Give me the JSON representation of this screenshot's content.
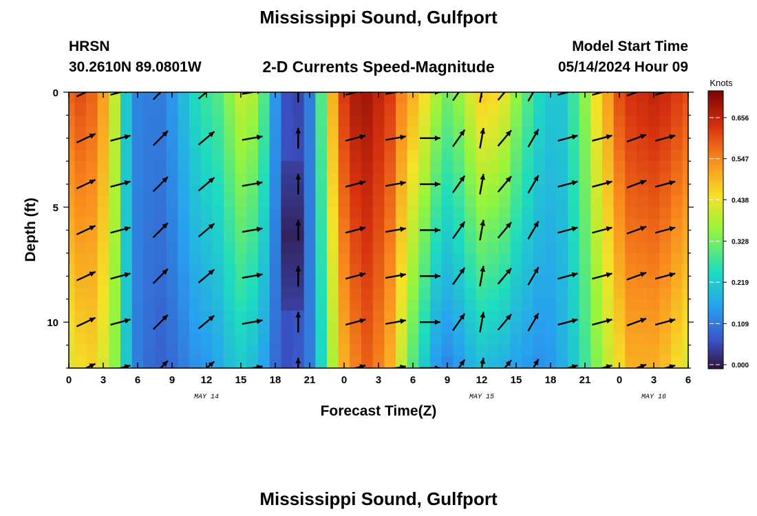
{
  "header": {
    "title": "Mississippi Sound, Gulfport",
    "station": "HRSN",
    "coords": "30.2610N  89.0801W",
    "subtitle": "2-D Currents Speed-Magnitude",
    "model_label": "Model Start Time",
    "model_time": "05/14/2024 Hour 09"
  },
  "footer": {
    "title": "Mississippi Sound, Gulfport"
  },
  "chart_data": {
    "type": "heatmap",
    "title": "2-D Currents Speed-Magnitude",
    "xlabel": "Forecast Time(Z)",
    "ylabel": "Depth (ft)",
    "x_ticks": [
      "0",
      "3",
      "6",
      "9",
      "12",
      "15",
      "18",
      "21",
      "0",
      "3",
      "6",
      "9",
      "12",
      "15",
      "18",
      "21",
      "0",
      "3",
      "6"
    ],
    "date_labels": [
      {
        "label": "MAY 14",
        "hour": 12
      },
      {
        "label": "MAY 15",
        "hour": 36
      },
      {
        "label": "MAY 16",
        "hour": 51
      }
    ],
    "xlim": [
      0,
      54
    ],
    "ylim": [
      0,
      12
    ],
    "y_ticks": [
      0,
      5,
      10
    ],
    "y_inverted": true,
    "colorbar": {
      "unit": "Knots",
      "min": 0.0,
      "max": 0.72,
      "ticks": [
        "0.000",
        "0.109",
        "0.219",
        "0.328",
        "0.438",
        "0.547",
        "0.656"
      ],
      "tick_values": [
        0.0,
        0.109,
        0.219,
        0.328,
        0.438,
        0.547,
        0.656
      ]
    },
    "speed_profile": {
      "hours": [
        0,
        1,
        2,
        3,
        4,
        5,
        6,
        7,
        8,
        9,
        10,
        11,
        12,
        13,
        14,
        15,
        16,
        17,
        18,
        19,
        20,
        21,
        22,
        23,
        24,
        25,
        26,
        27,
        28,
        29,
        30,
        31,
        32,
        33,
        34,
        35,
        36,
        37,
        38,
        39,
        40,
        41,
        42,
        43,
        44,
        45,
        46,
        47,
        48,
        49,
        50,
        51,
        52,
        53,
        54
      ],
      "surface_knots": [
        0.58,
        0.6,
        0.58,
        0.52,
        0.4,
        0.22,
        0.13,
        0.12,
        0.12,
        0.15,
        0.2,
        0.25,
        0.28,
        0.3,
        0.35,
        0.4,
        0.38,
        0.3,
        0.15,
        0.07,
        0.06,
        0.12,
        0.3,
        0.5,
        0.62,
        0.67,
        0.68,
        0.65,
        0.62,
        0.55,
        0.5,
        0.45,
        0.38,
        0.33,
        0.36,
        0.42,
        0.47,
        0.46,
        0.43,
        0.36,
        0.3,
        0.25,
        0.22,
        0.22,
        0.28,
        0.35,
        0.45,
        0.52,
        0.6,
        0.63,
        0.64,
        0.65,
        0.64,
        0.62,
        0.6
      ],
      "bottom_knots": [
        0.42,
        0.45,
        0.46,
        0.42,
        0.35,
        0.22,
        0.12,
        0.1,
        0.09,
        0.1,
        0.12,
        0.14,
        0.15,
        0.17,
        0.2,
        0.22,
        0.2,
        0.16,
        0.1,
        0.07,
        0.08,
        0.12,
        0.24,
        0.38,
        0.5,
        0.55,
        0.58,
        0.55,
        0.5,
        0.4,
        0.3,
        0.22,
        0.15,
        0.13,
        0.15,
        0.18,
        0.2,
        0.19,
        0.18,
        0.16,
        0.15,
        0.14,
        0.15,
        0.18,
        0.22,
        0.28,
        0.34,
        0.4,
        0.45,
        0.5,
        0.5,
        0.5,
        0.48,
        0.45,
        0.42
      ],
      "mid_low_hours": [
        19,
        20
      ],
      "mid_low_knots": 0.02
    },
    "vectors": {
      "hours": [
        1.5,
        4.5,
        8,
        12,
        16,
        20,
        25,
        28.5,
        31.5,
        34,
        36,
        38,
        40.5,
        43.5,
        46.5,
        49.5,
        52
      ],
      "depths": [
        0,
        2,
        4,
        6,
        8,
        10,
        12
      ],
      "angles_deg": [
        25,
        15,
        45,
        40,
        10,
        90,
        15,
        10,
        0,
        55,
        80,
        50,
        60,
        15,
        15,
        20,
        15
      ]
    }
  }
}
